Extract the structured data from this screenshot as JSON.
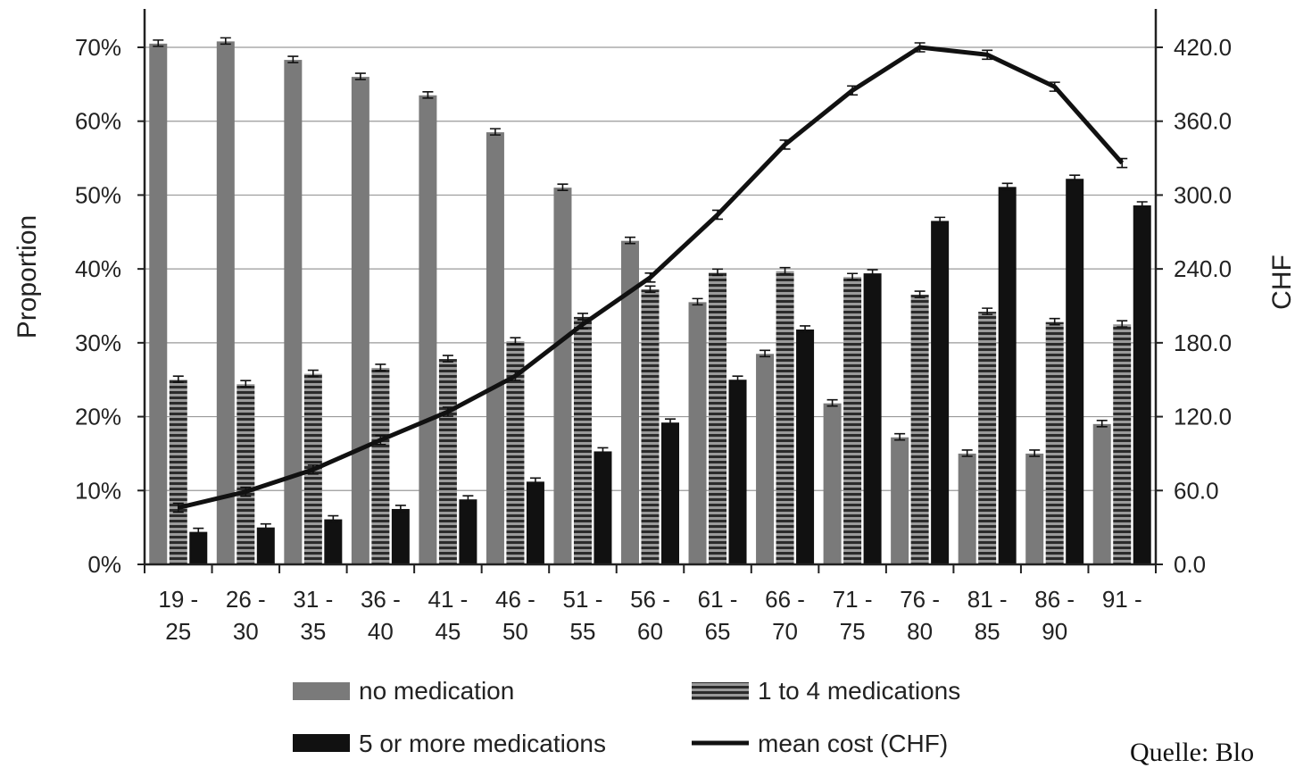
{
  "chart_data": {
    "type": "bar",
    "categories": [
      [
        "19 -",
        "25"
      ],
      [
        "26 -",
        "30"
      ],
      [
        "31 -",
        "35"
      ],
      [
        "36 -",
        "40"
      ],
      [
        "41 -",
        "45"
      ],
      [
        "46 -",
        "50"
      ],
      [
        "51 -",
        "55"
      ],
      [
        "56 -",
        "60"
      ],
      [
        "61 -",
        "65"
      ],
      [
        "66 -",
        "70"
      ],
      [
        "71 -",
        "75"
      ],
      [
        "76 -",
        "80"
      ],
      [
        "81 -",
        "85"
      ],
      [
        "86 -",
        "90"
      ],
      [
        "91 -",
        ""
      ]
    ],
    "series": [
      {
        "name": "no medication",
        "type": "bar",
        "axis": "left",
        "color": "#7a7a7a",
        "pattern": "solid",
        "values": [
          70.5,
          70.8,
          68.3,
          66.0,
          63.5,
          58.5,
          51.0,
          43.8,
          35.5,
          28.5,
          21.8,
          17.2,
          15.0,
          15.0,
          19.0
        ]
      },
      {
        "name": "1 to 4 medications",
        "type": "bar",
        "axis": "left",
        "color": "#555555",
        "pattern": "horizontal-stripes",
        "values": [
          25.0,
          24.4,
          25.8,
          26.6,
          27.8,
          30.2,
          33.5,
          37.2,
          39.5,
          39.7,
          38.9,
          36.5,
          34.2,
          32.8,
          32.5
        ]
      },
      {
        "name": "5 or more medications",
        "type": "bar",
        "axis": "left",
        "color": "#111111",
        "pattern": "solid",
        "values": [
          4.4,
          5.0,
          6.1,
          7.5,
          8.8,
          11.2,
          15.3,
          19.2,
          25.0,
          31.8,
          39.4,
          46.5,
          51.1,
          52.2,
          48.6
        ]
      },
      {
        "name": "mean cost (CHF)",
        "type": "line",
        "axis": "right",
        "color": "#111111",
        "values": [
          46,
          59,
          77,
          101,
          124,
          153,
          195,
          233,
          284,
          341,
          385,
          420,
          414,
          388,
          326
        ]
      }
    ],
    "y_left": {
      "label": "Proportion",
      "lim": [
        0,
        70
      ],
      "ticks": [
        "0%",
        "10%",
        "20%",
        "30%",
        "40%",
        "50%",
        "60%",
        "70%"
      ]
    },
    "y_right": {
      "label": "CHF",
      "lim": [
        0,
        420
      ],
      "ticks": [
        "0.0",
        "60.0",
        "120.0",
        "180.0",
        "240.0",
        "300.0",
        "360.0",
        "420.0"
      ]
    },
    "grid": true,
    "error_bars": true,
    "legend": {
      "position": "bottom"
    }
  },
  "source_note": "Quelle: Blo"
}
